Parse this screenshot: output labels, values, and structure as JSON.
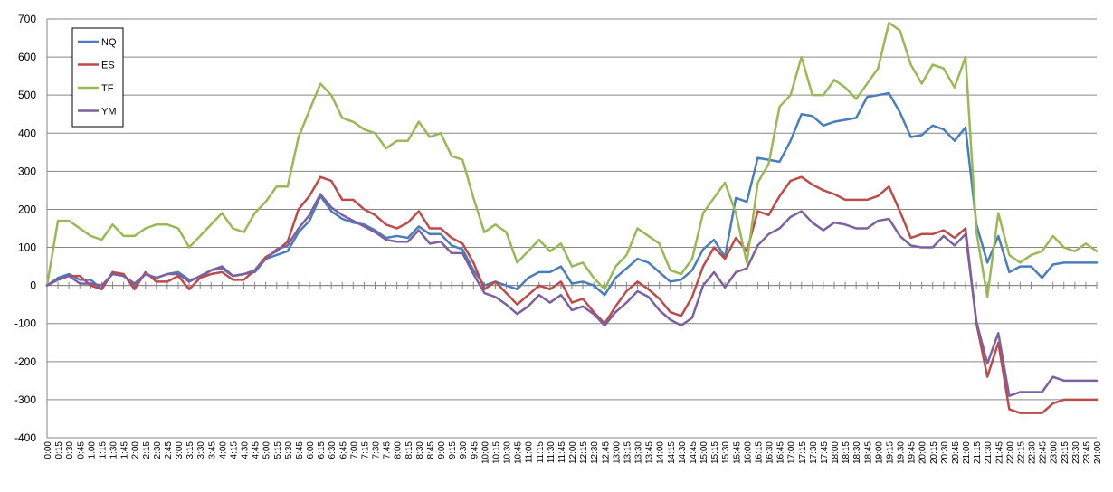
{
  "chart_data": {
    "type": "line",
    "ylim": [
      -400,
      700
    ],
    "yticks": [
      -400,
      -300,
      -200,
      -100,
      0,
      100,
      200,
      300,
      400,
      500,
      600,
      700
    ],
    "grid": "horizontal",
    "legend_position": "top-left",
    "x_labels": [
      "0:00",
      "0:15",
      "0:30",
      "0:45",
      "1:00",
      "1:15",
      "1:30",
      "1:45",
      "2:00",
      "2:15",
      "2:30",
      "2:45",
      "3:00",
      "3:15",
      "3:30",
      "3:45",
      "4:00",
      "4:15",
      "4:30",
      "4:45",
      "5:00",
      "5:15",
      "5:30",
      "5:45",
      "6:00",
      "6:15",
      "6:30",
      "6:45",
      "7:00",
      "7:15",
      "7:30",
      "7:45",
      "8:00",
      "8:15",
      "8:30",
      "8:45",
      "9:00",
      "9:15",
      "9:30",
      "9:45",
      "10:00",
      "10:15",
      "10:30",
      "10:45",
      "11:00",
      "11:15",
      "11:30",
      "11:45",
      "12:00",
      "12:15",
      "12:30",
      "12:45",
      "13:00",
      "13:15",
      "13:30",
      "13:45",
      "14:00",
      "14:15",
      "14:30",
      "14:45",
      "15:00",
      "15:15",
      "15:30",
      "15:45",
      "16:00",
      "16:15",
      "16:30",
      "16:45",
      "17:00",
      "17:15",
      "17:30",
      "17:45",
      "18:00",
      "18:15",
      "18:30",
      "18:45",
      "19:00",
      "19:15",
      "19:30",
      "19:45",
      "20:00",
      "20:15",
      "20:30",
      "20:45",
      "21:00",
      "21:15",
      "21:30",
      "21:45",
      "22:00",
      "22:15",
      "22:30",
      "22:45",
      "23:00",
      "23:15",
      "23:30",
      "23:45",
      "24:00"
    ],
    "series": [
      {
        "name": "NQ",
        "color": "#4a7ebb",
        "values": [
          0,
          20,
          30,
          15,
          15,
          -10,
          35,
          25,
          0,
          30,
          20,
          30,
          35,
          15,
          20,
          40,
          45,
          25,
          30,
          35,
          70,
          80,
          90,
          140,
          170,
          235,
          195,
          175,
          165,
          160,
          145,
          125,
          130,
          125,
          155,
          135,
          135,
          105,
          95,
          40,
          0,
          10,
          0,
          -10,
          20,
          35,
          35,
          50,
          5,
          10,
          0,
          -25,
          20,
          45,
          70,
          60,
          35,
          10,
          15,
          40,
          95,
          120,
          75,
          230,
          220,
          335,
          330,
          325,
          380,
          450,
          445,
          420,
          430,
          435,
          440,
          495,
          500,
          505,
          455,
          390,
          395,
          420,
          410,
          380,
          415,
          160,
          60,
          130,
          35,
          50,
          50,
          20,
          55,
          60,
          60,
          60,
          60
        ]
      },
      {
        "name": "ES",
        "color": "#be4b48",
        "values": [
          0,
          15,
          25,
          25,
          0,
          -10,
          35,
          30,
          -10,
          35,
          10,
          10,
          25,
          -10,
          20,
          30,
          35,
          15,
          15,
          40,
          75,
          90,
          115,
          200,
          235,
          285,
          275,
          225,
          225,
          200,
          185,
          160,
          150,
          165,
          195,
          150,
          150,
          125,
          110,
          60,
          -10,
          10,
          -20,
          -50,
          -25,
          0,
          -10,
          10,
          -45,
          -35,
          -70,
          -100,
          -55,
          -15,
          10,
          -10,
          -35,
          -70,
          -80,
          -30,
          50,
          100,
          70,
          125,
          90,
          195,
          185,
          235,
          275,
          285,
          265,
          250,
          240,
          225,
          225,
          225,
          235,
          260,
          195,
          125,
          135,
          135,
          145,
          125,
          150,
          -100,
          -240,
          -150,
          -325,
          -335,
          -335,
          -335,
          -310,
          -300,
          -300,
          -300,
          -300
        ]
      },
      {
        "name": "TF",
        "color": "#98b954",
        "values": [
          0,
          170,
          170,
          150,
          130,
          120,
          160,
          130,
          130,
          150,
          160,
          160,
          150,
          100,
          130,
          160,
          190,
          150,
          140,
          190,
          220,
          260,
          260,
          390,
          460,
          530,
          500,
          440,
          430,
          410,
          400,
          360,
          380,
          380,
          430,
          390,
          400,
          340,
          330,
          230,
          140,
          160,
          140,
          60,
          90,
          120,
          90,
          110,
          50,
          60,
          20,
          -10,
          50,
          80,
          150,
          130,
          110,
          40,
          30,
          70,
          190,
          230,
          270,
          190,
          60,
          270,
          320,
          470,
          500,
          600,
          500,
          500,
          540,
          520,
          490,
          530,
          570,
          690,
          670,
          580,
          530,
          580,
          570,
          520,
          600,
          140,
          -30,
          190,
          80,
          60,
          80,
          90,
          130,
          100,
          90,
          110,
          90
        ]
      },
      {
        "name": "YM",
        "color": "#7d60a0",
        "values": [
          0,
          15,
          25,
          5,
          5,
          0,
          30,
          25,
          5,
          30,
          20,
          30,
          30,
          10,
          25,
          40,
          50,
          25,
          30,
          40,
          70,
          95,
          105,
          150,
          185,
          240,
          205,
          185,
          170,
          155,
          140,
          120,
          115,
          115,
          145,
          110,
          115,
          85,
          85,
          30,
          -20,
          -30,
          -50,
          -75,
          -55,
          -25,
          -45,
          -25,
          -65,
          -55,
          -75,
          -105,
          -70,
          -45,
          -15,
          -30,
          -65,
          -90,
          -105,
          -85,
          0,
          35,
          -5,
          35,
          45,
          105,
          135,
          150,
          180,
          195,
          165,
          145,
          165,
          160,
          150,
          150,
          170,
          175,
          130,
          105,
          100,
          100,
          130,
          105,
          135,
          -95,
          -205,
          -125,
          -290,
          -280,
          -280,
          -280,
          -240,
          -250,
          -250,
          -250,
          -250
        ]
      }
    ]
  }
}
